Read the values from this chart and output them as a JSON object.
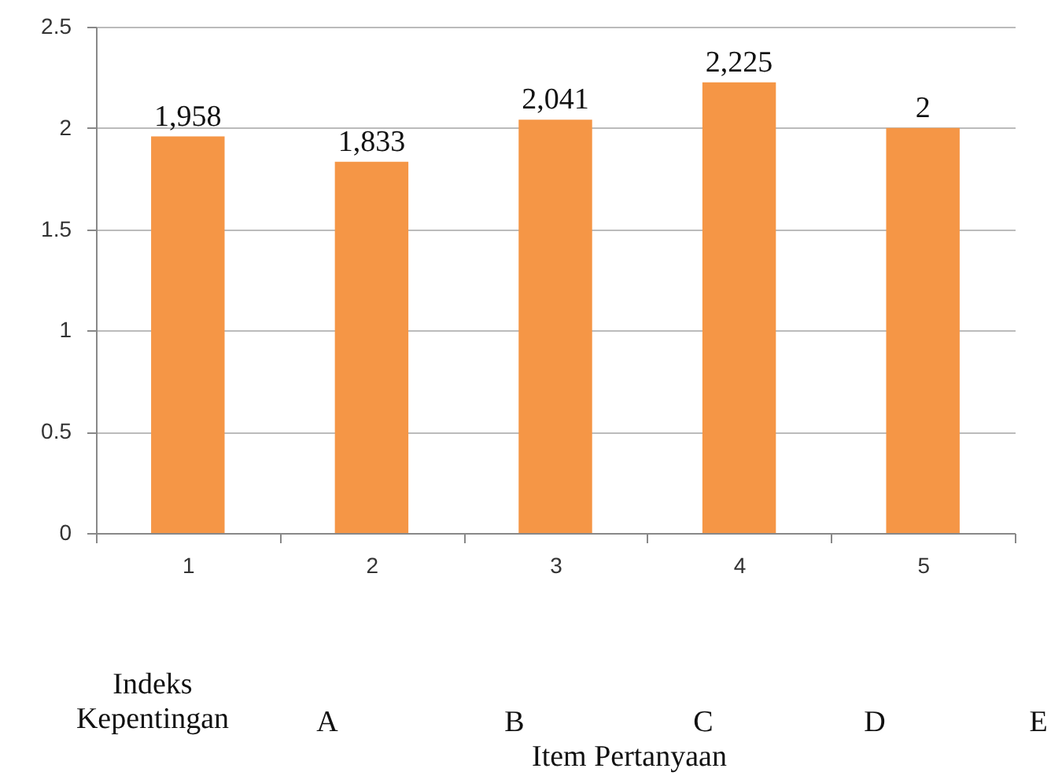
{
  "chart_data": {
    "type": "bar",
    "categories": [
      "1",
      "2",
      "3",
      "4",
      "5"
    ],
    "values": [
      1.958,
      1.833,
      2.041,
      2.225,
      2
    ],
    "value_labels": [
      null,
      null,
      null,
      null,
      "2"
    ],
    "color": "#f59646",
    "ylim": [
      0,
      2.5
    ],
    "yticks": [
      0,
      0.5,
      1,
      1.5,
      2,
      2.5
    ],
    "grid": "y",
    "annotations": [
      "Indeks Kepentingan",
      "A",
      "B",
      "C",
      "D",
      "E",
      "Item Pertanyaan",
      {
        "text": "1,958",
        "x": "1",
        "y": 1.958
      },
      {
        "text": "1,833",
        "x": "2",
        "y": 1.833
      },
      {
        "text": "2,041",
        "x": "3",
        "y": 2.041
      },
      {
        "text": "2,225",
        "x": "4",
        "y": 2.225
      }
    ]
  }
}
